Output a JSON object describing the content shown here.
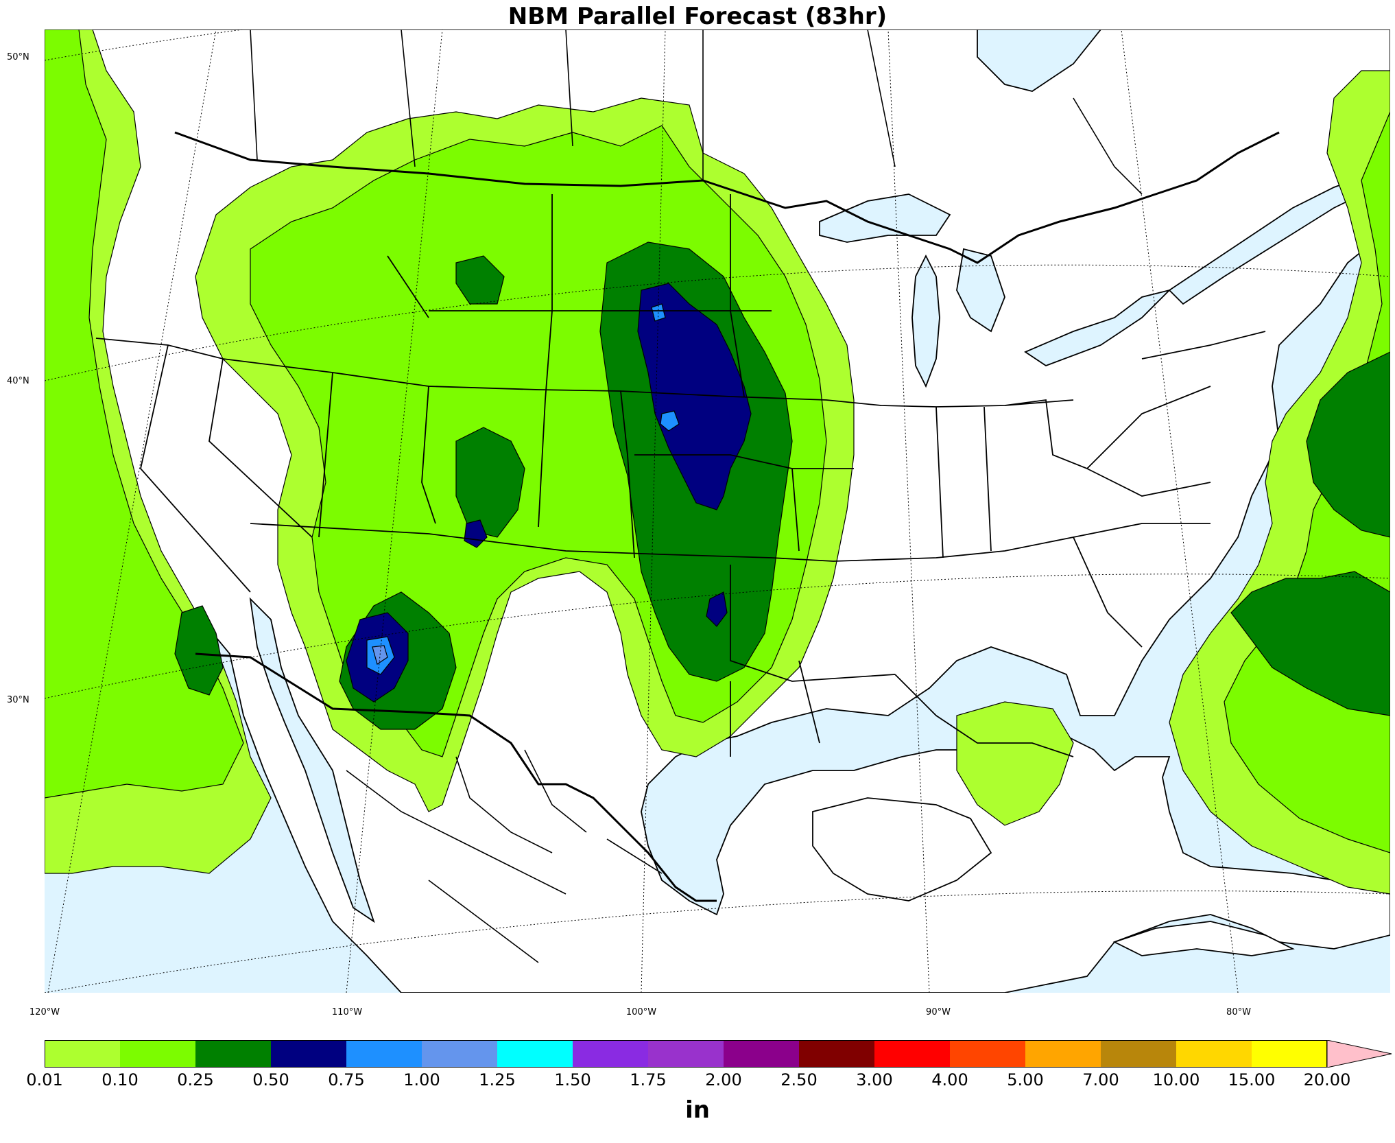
{
  "title": "NBM Parallel Forecast (83hr)",
  "lat_labels": [
    {
      "text": "50°N"
    },
    {
      "text": "40°N"
    },
    {
      "text": "30°N"
    }
  ],
  "lon_labels": [
    {
      "text": "120°W"
    },
    {
      "text": "110°W"
    },
    {
      "text": "100°W"
    },
    {
      "text": "90°W"
    },
    {
      "text": "80°W"
    }
  ],
  "colorbar": {
    "unit": "in",
    "ticks": [
      "0.01",
      "0.10",
      "0.25",
      "0.50",
      "0.75",
      "1.00",
      "1.25",
      "1.50",
      "1.75",
      "2.00",
      "2.50",
      "3.00",
      "4.00",
      "5.00",
      "7.00",
      "10.00",
      "15.00",
      "20.00"
    ],
    "colors": [
      "#adff2f",
      "#7cfc00",
      "#008000",
      "#000080",
      "#1e90ff",
      "#6495ed",
      "#00ffff",
      "#8a2be2",
      "#9932cc",
      "#8b008b",
      "#800000",
      "#ff0000",
      "#ff4500",
      "#ffa500",
      "#b8860b",
      "#ffd700",
      "#ffff00"
    ],
    "extend_color": "#ffc0cb"
  },
  "colors": {
    "water": "#def4ff",
    "land": "#ffffff"
  }
}
